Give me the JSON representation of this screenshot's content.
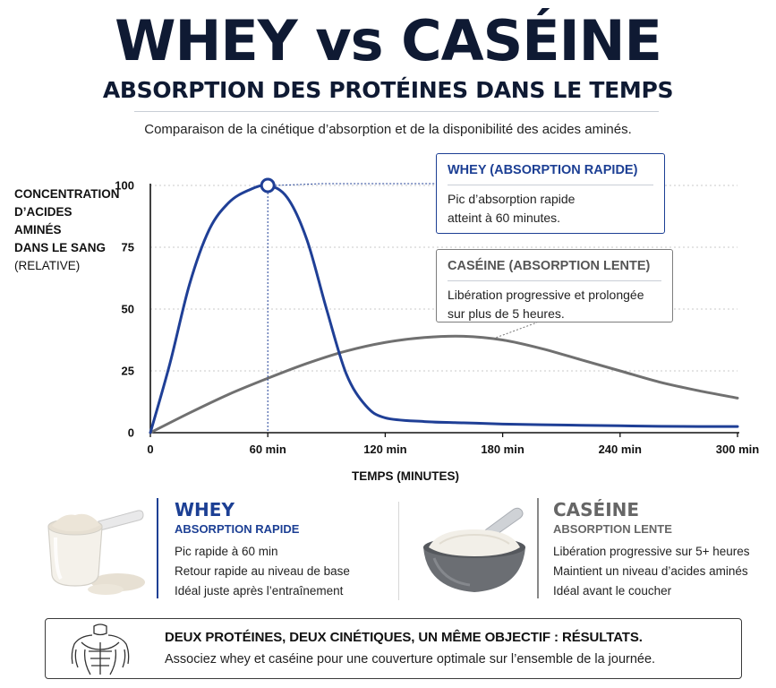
{
  "header": {
    "title": "WHEY vs CASÉINE",
    "subtitle": "ABSORPTION DES PROTÉINES DANS LE TEMPS",
    "intro": "Comparaison de la cinétique d’absorption et de la disponibilité des acides aminés."
  },
  "chart_data": {
    "type": "line",
    "ylabel": [
      "CONCENTRATION",
      "D’ACIDES AMINÉS",
      "DANS LE SANG"
    ],
    "ylabel_unit": "(RELATIVE)",
    "xlabel": "TEMPS (MINUTES)",
    "yticks": [
      "0",
      "25",
      "50",
      "75",
      "100"
    ],
    "xticks": [
      "0",
      "60 min",
      "120 min",
      "180 min",
      "240 min",
      "300 min"
    ],
    "xlim": [
      0,
      300
    ],
    "ylim": [
      0,
      100
    ],
    "grid": true,
    "series": [
      {
        "name": "WHEY (ABSORPTION RAPIDE)",
        "color": "#1f3f96",
        "x": [
          0,
          10,
          20,
          30,
          40,
          50,
          60,
          70,
          80,
          90,
          100,
          110,
          120,
          140,
          160,
          180,
          200,
          220,
          240,
          260,
          280,
          300
        ],
        "y": [
          0,
          28,
          60,
          82,
          93,
          98,
          100,
          95,
          78,
          50,
          24,
          11,
          6,
          4.5,
          4,
          3.5,
          3.2,
          3,
          2.8,
          2.6,
          2.5,
          2.5
        ]
      },
      {
        "name": "CASÉINE (ABSORPTION LENTE)",
        "color": "#707070",
        "x": [
          0,
          20,
          40,
          60,
          80,
          100,
          120,
          140,
          160,
          180,
          200,
          220,
          240,
          260,
          280,
          300
        ],
        "y": [
          0,
          8,
          15.5,
          22,
          28,
          33,
          36.5,
          38.5,
          39,
          37.5,
          34,
          29.5,
          25,
          20.5,
          17,
          14
        ]
      }
    ],
    "annotations": [
      {
        "series": "whey",
        "title": "WHEY (ABSORPTION RAPIDE)",
        "text": [
          "Pic d’absorption rapide",
          "atteint à 60 minutes."
        ],
        "point": {
          "x": 60,
          "y": 100
        }
      },
      {
        "series": "caseine",
        "title": "CASÉINE (ABSORPTION LENTE)",
        "text": [
          "Libération progressive et prolongée",
          "sur plus de 5 heures."
        ],
        "point": {
          "x": 175,
          "y": 38
        }
      }
    ]
  },
  "products": {
    "whey": {
      "name": "WHEY",
      "subtitle": "ABSORPTION RAPIDE",
      "points": [
        "Pic rapide à 60 min",
        "Retour rapide au niveau de base",
        "Idéal juste après l’entraînement"
      ]
    },
    "caseine": {
      "name": "CASÉINE",
      "subtitle": "ABSORPTION LENTE",
      "points": [
        "Libération progressive sur 5+ heures",
        "Maintient un niveau d’acides aminés",
        "Idéal avant le coucher"
      ]
    }
  },
  "footer": {
    "headline": "DEUX PROTÉINES, DEUX CINÉTIQUES, UN MÊME OBJECTIF : RÉSULTATS.",
    "text": "Associez whey et caséine pour une couverture optimale sur l’ensemble de la journée."
  }
}
